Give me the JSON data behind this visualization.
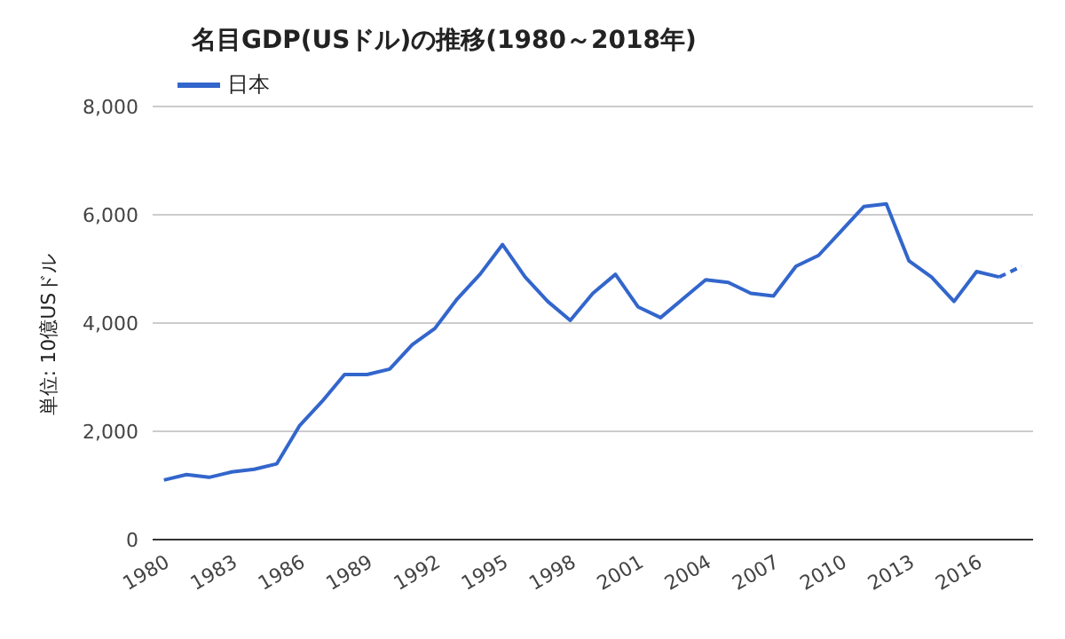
{
  "chart_data": {
    "type": "line",
    "title": "名目GDP(USドル)の推移(1980～2018年)",
    "ylabel": "単位: 10億USドル",
    "xlim": [
      1979.5,
      2018.5
    ],
    "xticks": [
      1980,
      1983,
      1986,
      1989,
      1992,
      1995,
      1998,
      2001,
      2004,
      2007,
      2010,
      2013,
      2016
    ],
    "ylim": [
      0,
      8000
    ],
    "yticks": [
      0,
      {
        "value": 2000,
        "label": "2,000"
      },
      {
        "value": 4000,
        "label": "4,000"
      },
      {
        "value": 6000,
        "label": "6,000"
      },
      {
        "value": 8000,
        "label": "8,000"
      }
    ],
    "grid": "y",
    "legend": "top left",
    "marker": "none",
    "series": [
      {
        "name": "日本",
        "color": "#3366cc",
        "line_style": "solid",
        "x": [
          1980,
          1981,
          1982,
          1983,
          1984,
          1985,
          1986,
          1987,
          1988,
          1989,
          1990,
          1991,
          1992,
          1993,
          1994,
          1995,
          1996,
          1997,
          1998,
          1999,
          2000,
          2001,
          2002,
          2003,
          2004,
          2005,
          2006,
          2007,
          2008,
          2009,
          2010,
          2011,
          2012,
          2013,
          2014,
          2015,
          2016,
          2017
        ],
        "values": [
          1100,
          1200,
          1150,
          1250,
          1300,
          1400,
          2100,
          2550,
          3050,
          3050,
          3150,
          3600,
          3900,
          4450,
          4900,
          5450,
          4850,
          4400,
          4050,
          4550,
          4900,
          4300,
          4100,
          4450,
          4800,
          4750,
          4550,
          4500,
          5050,
          5250,
          5700,
          6150,
          6200,
          5150,
          4850,
          4400,
          4950,
          4850
        ]
      },
      {
        "color": "#3366cc",
        "line_style": "dashed",
        "x": [
          2017,
          2018
        ],
        "values": [
          4850,
          5050
        ]
      }
    ]
  }
}
